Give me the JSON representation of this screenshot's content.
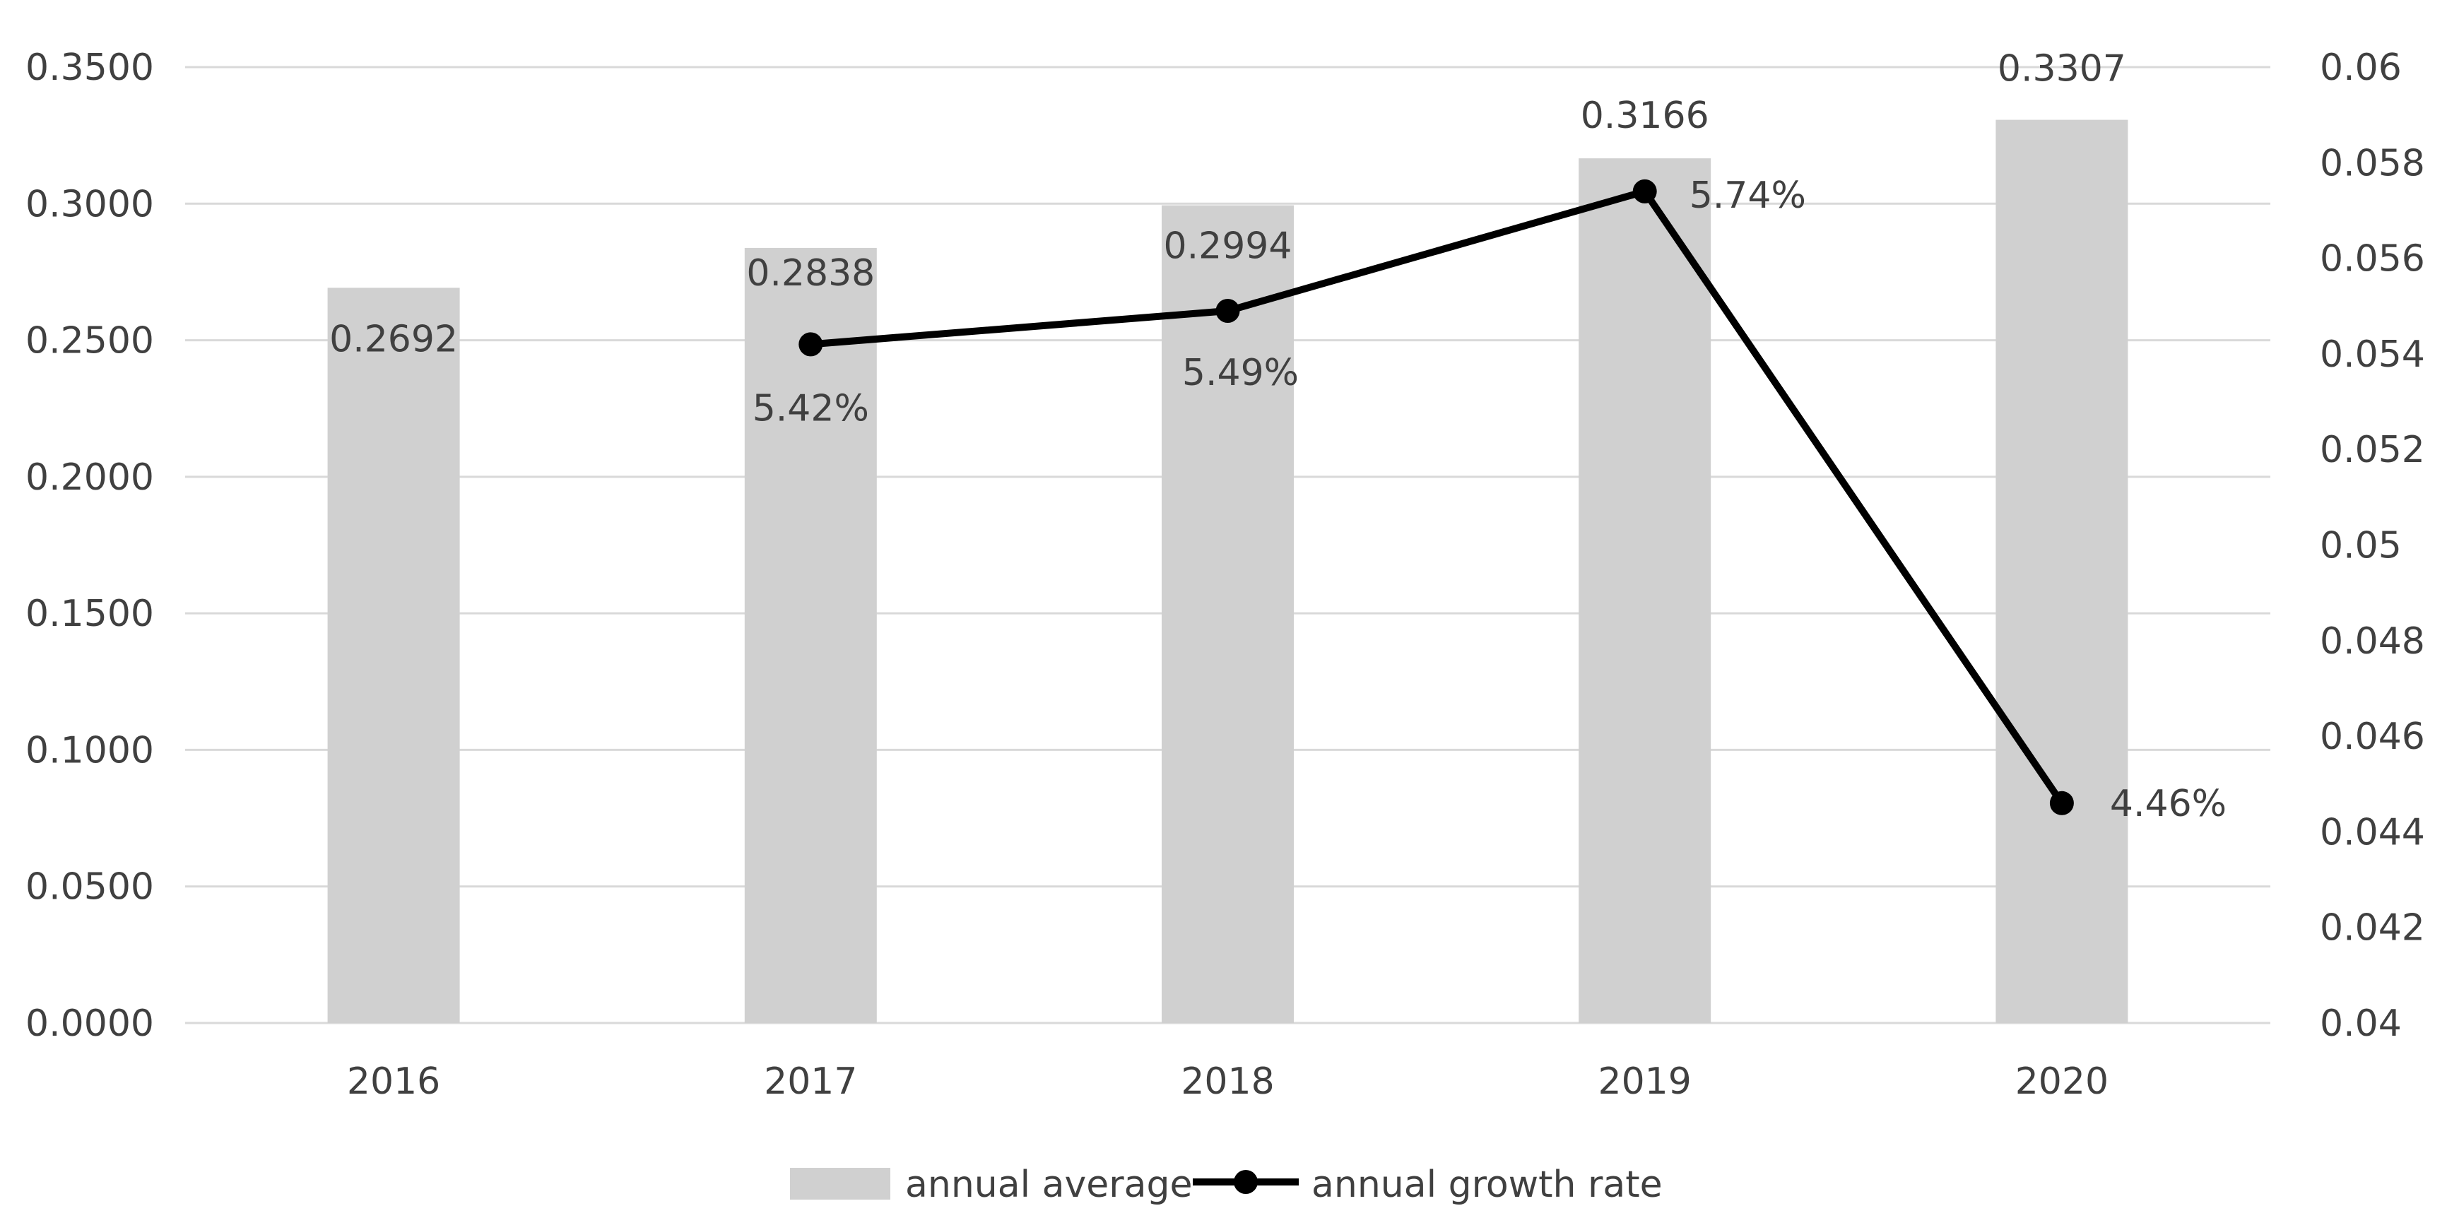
{
  "chart_data": {
    "type": "bar+line",
    "categories": [
      "2016",
      "2017",
      "2018",
      "2019",
      "2020"
    ],
    "series": [
      {
        "name": "annual average",
        "type": "bar",
        "axis": "left",
        "color": "#d0d0d0",
        "values": [
          0.2692,
          0.2838,
          0.2994,
          0.3166,
          0.3307
        ],
        "labels": [
          "0.2692",
          "0.2838",
          "0.2994",
          "0.3166",
          "0.3307"
        ]
      },
      {
        "name": "annual growth rate",
        "type": "line",
        "axis": "right",
        "color": "#000000",
        "values": [
          null,
          0.0542,
          0.0549,
          0.0574,
          0.0446
        ],
        "labels": [
          null,
          "5.42%",
          "5.49%",
          "5.74%",
          "4.46%"
        ]
      }
    ],
    "y_left": {
      "min": 0,
      "max": 0.35,
      "ticks": [
        "0.0000",
        "0.0500",
        "0.1000",
        "0.1500",
        "0.2000",
        "0.2500",
        "0.3000",
        "0.3500"
      ]
    },
    "y_right": {
      "min": 0.04,
      "max": 0.06,
      "ticks": [
        "0.04",
        "0.042",
        "0.044",
        "0.046",
        "0.048",
        "0.05",
        "0.052",
        "0.054",
        "0.056",
        "0.058",
        "0.06"
      ]
    },
    "grid": true,
    "legend_position": "bottom",
    "gridline_color": "#d9d9d9"
  }
}
